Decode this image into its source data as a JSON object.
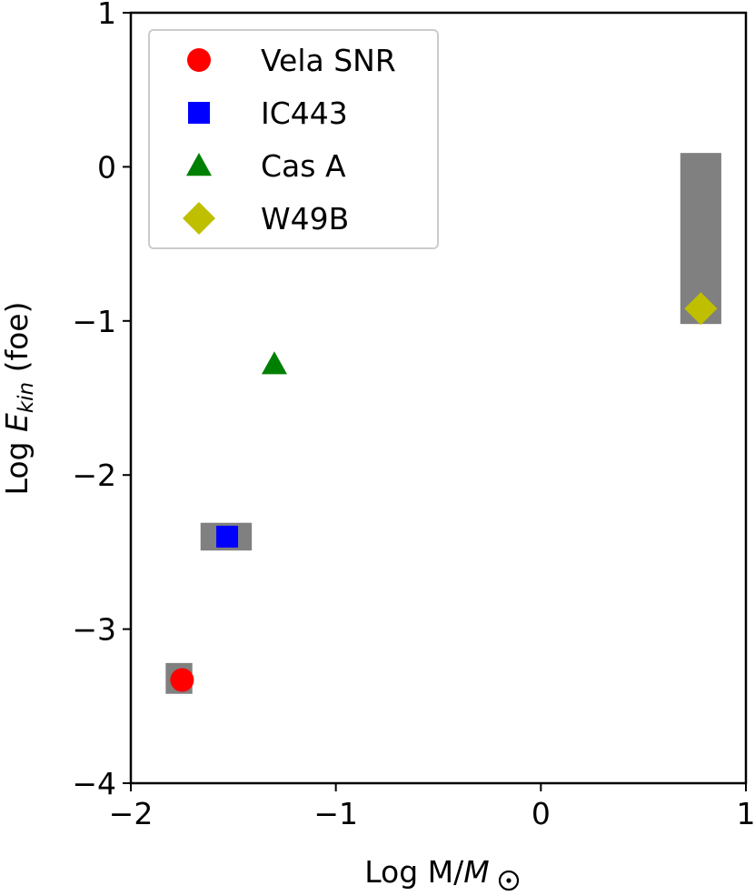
{
  "chart_data": {
    "type": "scatter",
    "title": "",
    "xlabel": "Log M/",
    "xlabel_sym": "M",
    "ylabel_main": "Log ",
    "ylabel_E": "E",
    "ylabel_sub": "kin",
    "ylabel_unit": " (foe)",
    "xlim": [
      -2,
      1
    ],
    "ylim": [
      -4,
      1
    ],
    "xticks": [
      -2,
      -1,
      0,
      1
    ],
    "yticks": [
      -4,
      -3,
      -2,
      -1,
      0,
      1
    ],
    "xtick_labels": [
      "−2",
      "−1",
      "0",
      "1"
    ],
    "ytick_labels": [
      "−4",
      "−3",
      "−2",
      "−1",
      "0",
      "1"
    ],
    "grid": false,
    "legend_position": "top-left",
    "error_boxes": [
      {
        "x": [
          -1.83,
          -1.7
        ],
        "y": [
          -3.42,
          -3.22
        ],
        "color": "#808080"
      },
      {
        "x": [
          -1.66,
          -1.41
        ],
        "y": [
          -2.49,
          -2.31
        ],
        "color": "#808080"
      },
      {
        "x": [
          0.68,
          0.88
        ],
        "y": [
          -1.02,
          0.09
        ],
        "color": "#808080"
      }
    ],
    "series": [
      {
        "name": "Vela SNR",
        "marker": "circle",
        "color": "#ff0000",
        "x": [
          -1.75
        ],
        "y": [
          -3.33
        ]
      },
      {
        "name": "IC443",
        "marker": "square",
        "color": "#0000ff",
        "x": [
          -1.53
        ],
        "y": [
          -2.4
        ]
      },
      {
        "name": "Cas A",
        "marker": "triangle",
        "color": "#008000",
        "x": [
          -1.3
        ],
        "y": [
          -1.28
        ]
      },
      {
        "name": "W49B",
        "marker": "diamond",
        "color": "#bfbf00",
        "x": [
          0.78
        ],
        "y": [
          -0.92
        ]
      }
    ]
  }
}
